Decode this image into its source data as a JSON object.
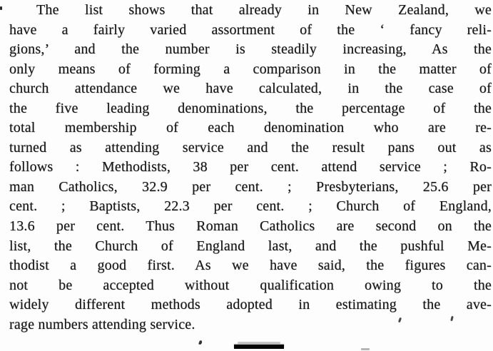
{
  "document": {
    "kind": "scanned printed paragraph",
    "ink_color": "#1a1a1a",
    "paper_color": "#fdfdfd",
    "lines": [
      {
        "text": "The list shows that already in New Zealand, we",
        "indent": true
      },
      {
        "text": "have a fairly varied assortment of the ‘ fancy reli-"
      },
      {
        "text": "gions,’ and the number is steadily increasing, As the"
      },
      {
        "text": "only means of forming a comparison in the matter of"
      },
      {
        "text": "church attendance we have calculated, in the case of"
      },
      {
        "text": "the five leading denominations, the percentage of the"
      },
      {
        "text": "total membership of each denomination who are re-"
      },
      {
        "text": "turned as attending service and the result pans out as"
      },
      {
        "text": "follows : Methodists, 38 per cent. attend service ; Ro-"
      },
      {
        "text": "man Catholics, 32.9 per cent. ; Presbyterians, 25.6 per"
      },
      {
        "text": "cent. ; Baptists, 22.3 per cent. ; Church of England,"
      },
      {
        "text": "13.6 per cent. Thus Roman Catholics are second on the"
      },
      {
        "text": "list, the Church of England last, and the pushful Me-"
      },
      {
        "text": "thodist a good first. As we have said, the figures can-"
      },
      {
        "text": "not be accepted without qualification owing to the"
      },
      {
        "text": "widely different methods adopted in estimating the ave-"
      },
      {
        "text": "rage numbers attending service.",
        "justify": false
      }
    ],
    "statistics": {
      "Methodists": "38 per cent.",
      "Roman Catholics": "32.9 per cent.",
      "Presbyterians": "25.6 per cent.",
      "Baptists": "22.3 per cent.",
      "Church of England": "13.6 per cent."
    },
    "artifacts": {
      "redaction_bar_color": "#050505",
      "speck_color": "#474747"
    }
  }
}
